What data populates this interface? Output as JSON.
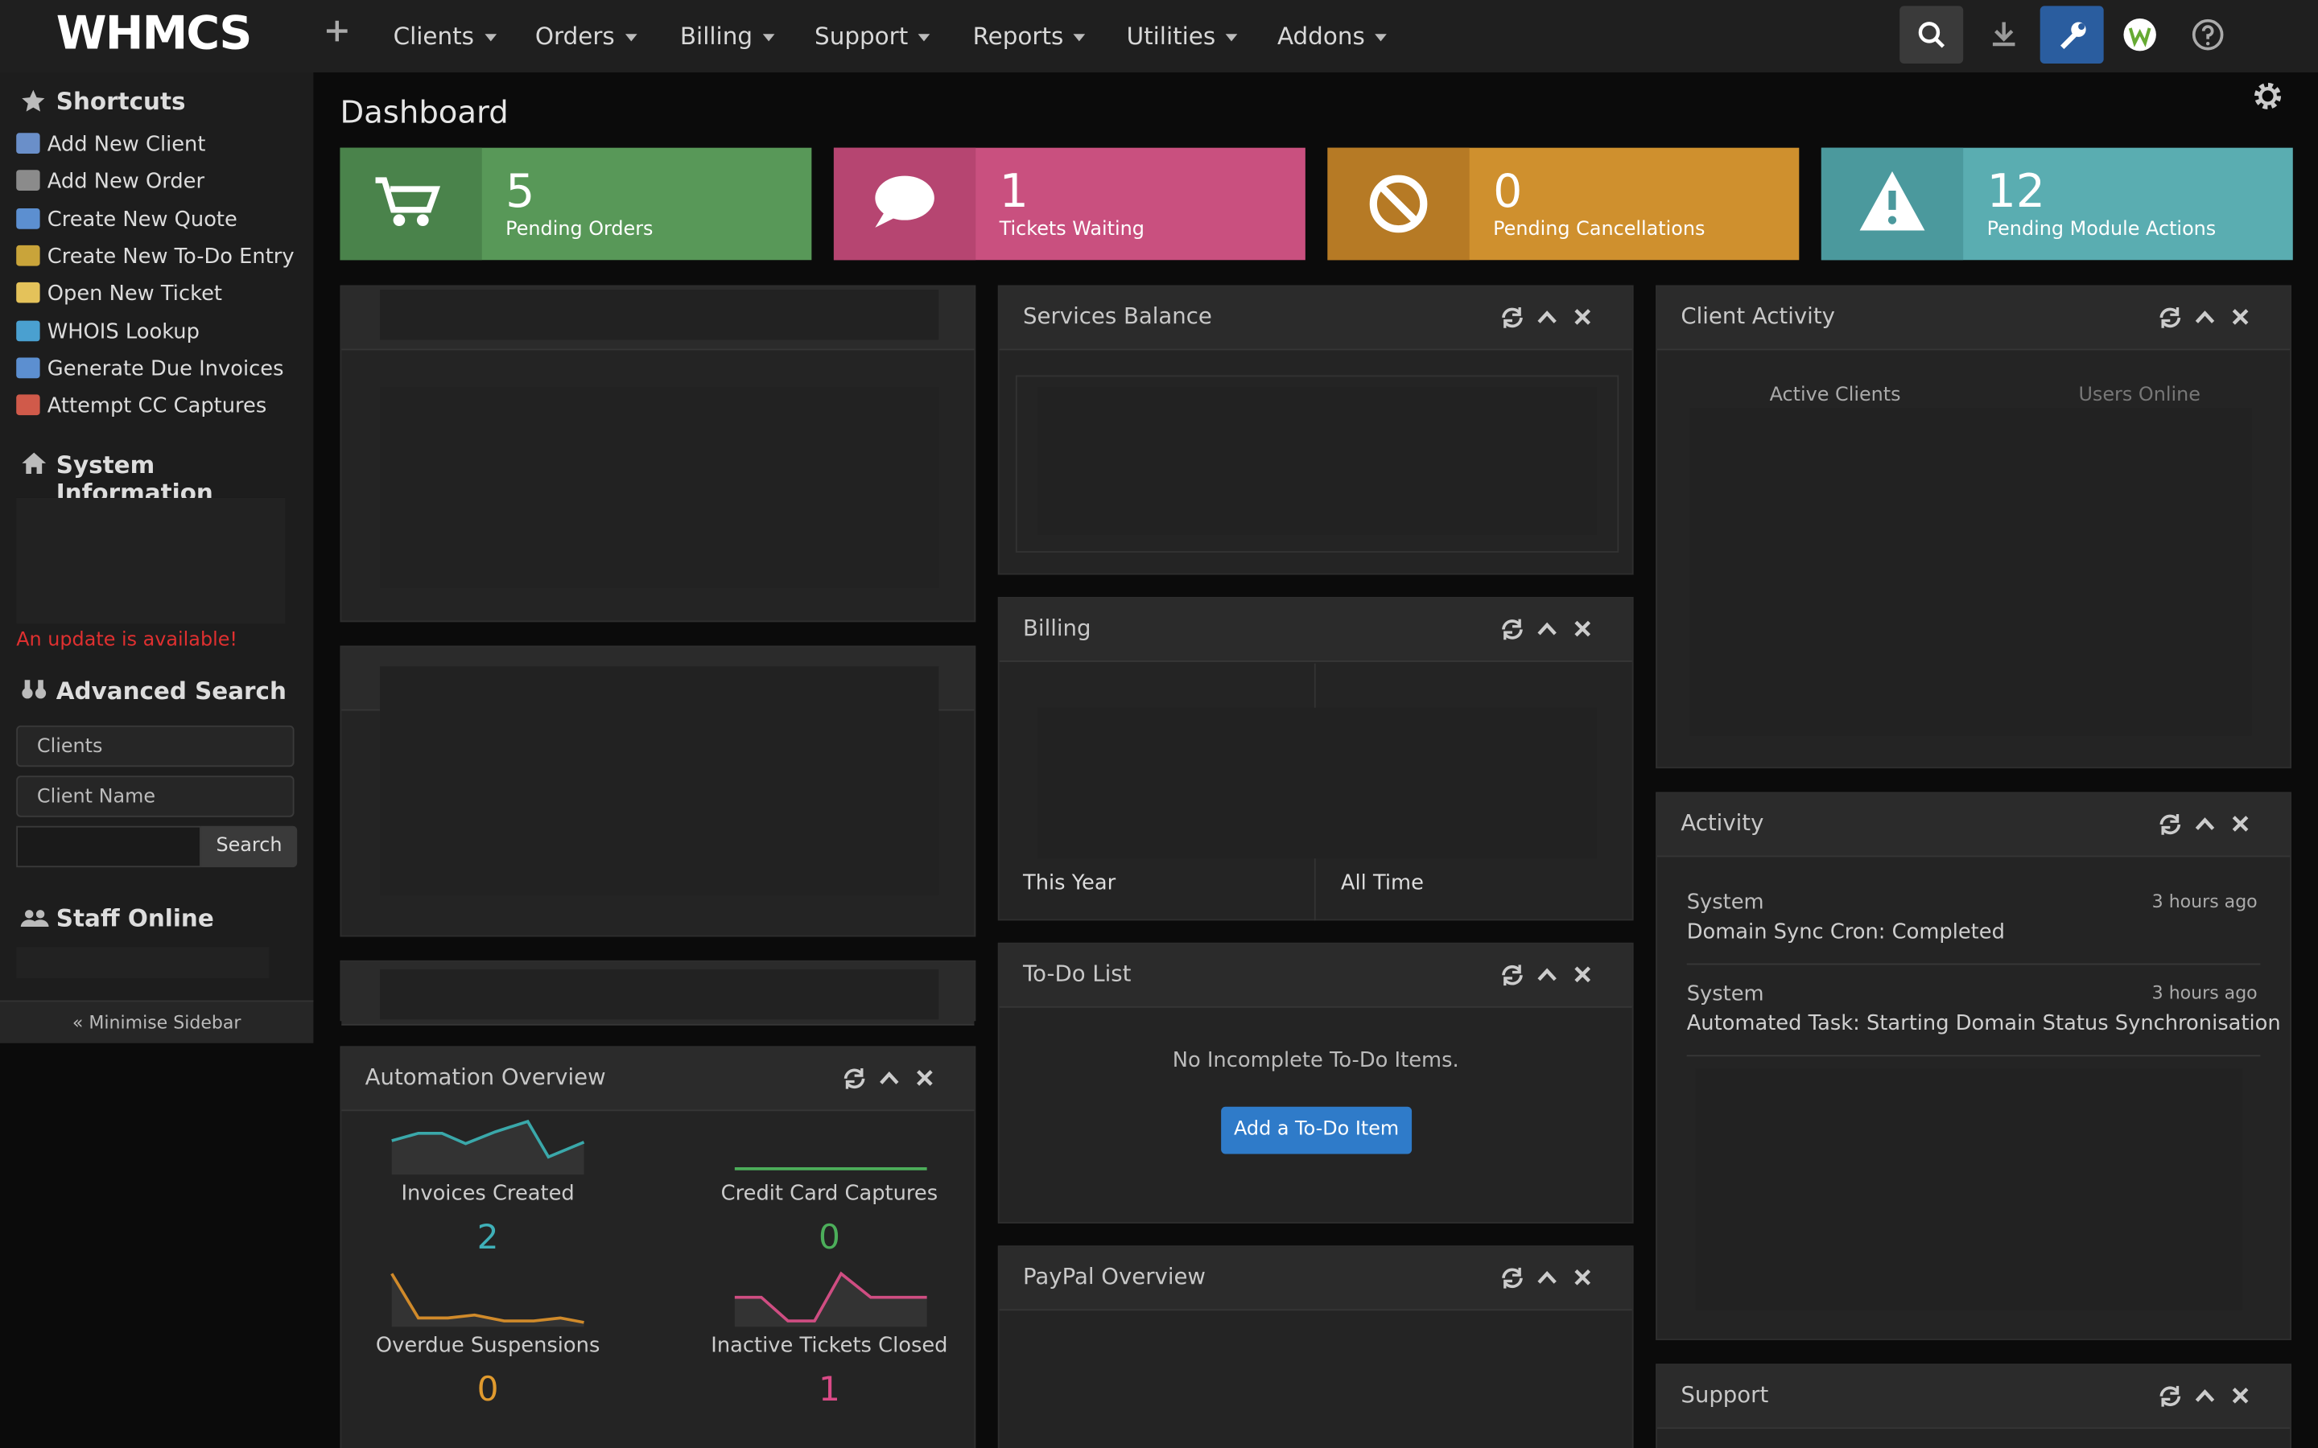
{
  "brand": "WHMCS",
  "nav": [
    "Clients",
    "Orders",
    "Billing",
    "Support",
    "Reports",
    "Utilities",
    "Addons"
  ],
  "page_title": "Dashboard",
  "sidebar": {
    "shortcuts_title": "Shortcuts",
    "shortcuts": [
      "Add New Client",
      "Add New Order",
      "Create New Quote",
      "Create New To-Do Entry",
      "Open New Ticket",
      "WHOIS Lookup",
      "Generate Due Invoices",
      "Attempt CC Captures"
    ],
    "system_info_title": "System Information",
    "update_notice": "An update is available!",
    "advanced_search_title": "Advanced Search",
    "search_type": "Clients",
    "search_field": "Client Name",
    "search_button": "Search",
    "staff_online_title": "Staff Online",
    "minimise": "« Minimise Sidebar"
  },
  "stats": [
    {
      "value": 5,
      "label": "Pending Orders"
    },
    {
      "value": 1,
      "label": "Tickets Waiting"
    },
    {
      "value": 0,
      "label": "Pending Cancellations"
    },
    {
      "value": 12,
      "label": "Pending Module Actions"
    }
  ],
  "panels": {
    "services_balance": "Services Balance",
    "billing": {
      "title": "Billing",
      "this_year": "This Year",
      "all_time": "All Time"
    },
    "todo": {
      "title": "To-Do List",
      "empty": "No Incomplete To-Do Items.",
      "button": "Add a To-Do Item"
    },
    "paypal": "PayPal Overview",
    "client_activity": {
      "title": "Client Activity",
      "tabs": [
        "Active Clients",
        "Users Online"
      ]
    },
    "activity": {
      "title": "Activity",
      "items": [
        {
          "who": "System",
          "when": "3 hours ago",
          "text": "Domain Sync Cron: Completed"
        },
        {
          "who": "System",
          "when": "3 hours ago",
          "text": "Automated Task: Starting Domain Status Synchronisation"
        }
      ]
    },
    "support": "Support",
    "automation": {
      "title": "Automation Overview",
      "items": [
        {
          "label": "Invoices Created",
          "value": 2
        },
        {
          "label": "Credit Card Captures",
          "value": 0
        },
        {
          "label": "Overdue Suspensions",
          "value": 0
        },
        {
          "label": "Inactive Tickets Closed",
          "value": 1
        }
      ]
    }
  }
}
